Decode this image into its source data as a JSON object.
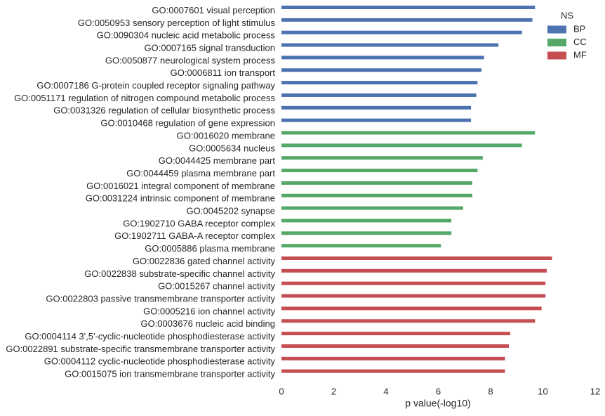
{
  "chart_data": {
    "type": "bar",
    "orientation": "horizontal",
    "xlabel": "p value(-log10)",
    "ylabel": "",
    "xlim": [
      0,
      12
    ],
    "xticks": [
      0,
      2,
      4,
      6,
      8,
      10,
      12
    ],
    "grid": false,
    "legend": {
      "title": "NS",
      "placement": "top-right",
      "items": [
        {
          "name": "BP",
          "color": "#4c72b0"
        },
        {
          "name": "CC",
          "color": "#55a868"
        },
        {
          "name": "MF",
          "color": "#c44e52"
        }
      ]
    },
    "bars": [
      {
        "label": "GO:0007601 visual perception",
        "value": 9.7,
        "ns": "BP"
      },
      {
        "label": "GO:0050953 sensory perception of light stimulus",
        "value": 9.6,
        "ns": "BP"
      },
      {
        "label": "GO:0090304 nucleic acid metabolic process",
        "value": 9.2,
        "ns": "BP"
      },
      {
        "label": "GO:0007165 signal transduction",
        "value": 8.3,
        "ns": "BP"
      },
      {
        "label": "GO:0050877 neurological system process",
        "value": 7.75,
        "ns": "BP"
      },
      {
        "label": "GO:0006811 ion transport",
        "value": 7.65,
        "ns": "BP"
      },
      {
        "label": "GO:0007186 G-protein coupled receptor signaling pathway",
        "value": 7.5,
        "ns": "BP"
      },
      {
        "label": "GO:0051171 regulation of nitrogen compound metabolic process",
        "value": 7.45,
        "ns": "BP"
      },
      {
        "label": "GO:0031326 regulation of cellular biosynthetic process",
        "value": 7.25,
        "ns": "BP"
      },
      {
        "label": "GO:0010468 regulation of gene expression",
        "value": 7.25,
        "ns": "BP"
      },
      {
        "label": "GO:0016020 membrane",
        "value": 9.7,
        "ns": "CC"
      },
      {
        "label": "GO:0005634 nucleus",
        "value": 9.2,
        "ns": "CC"
      },
      {
        "label": "GO:0044425 membrane part",
        "value": 7.7,
        "ns": "CC"
      },
      {
        "label": "GO:0044459 plasma membrane part",
        "value": 7.5,
        "ns": "CC"
      },
      {
        "label": "GO:0016021 integral component of membrane",
        "value": 7.3,
        "ns": "CC"
      },
      {
        "label": "GO:0031224 intrinsic component of membrane",
        "value": 7.3,
        "ns": "CC"
      },
      {
        "label": "GO:0045202 synapse",
        "value": 6.95,
        "ns": "CC"
      },
      {
        "label": "GO:1902710 GABA receptor complex",
        "value": 6.5,
        "ns": "CC"
      },
      {
        "label": "GO:1902711 GABA-A receptor complex",
        "value": 6.5,
        "ns": "CC"
      },
      {
        "label": "GO:0005886 plasma membrane",
        "value": 6.1,
        "ns": "CC"
      },
      {
        "label": "GO:0022836 gated channel activity",
        "value": 10.35,
        "ns": "MF"
      },
      {
        "label": "GO:0022838 substrate-specific channel activity",
        "value": 10.15,
        "ns": "MF"
      },
      {
        "label": "GO:0015267 channel activity",
        "value": 10.1,
        "ns": "MF"
      },
      {
        "label": "GO:0022803 passive transmembrane transporter activity",
        "value": 10.1,
        "ns": "MF"
      },
      {
        "label": "GO:0005216 ion channel activity",
        "value": 9.95,
        "ns": "MF"
      },
      {
        "label": "GO:0003676 nucleic acid binding",
        "value": 9.7,
        "ns": "MF"
      },
      {
        "label": "GO:0004114 3',5'-cyclic-nucleotide phosphodiesterase activity",
        "value": 8.75,
        "ns": "MF"
      },
      {
        "label": "GO:0022891 substrate-specific transmembrane transporter activity",
        "value": 8.7,
        "ns": "MF"
      },
      {
        "label": "GO:0004112 cyclic-nucleotide phosphodiesterase activity",
        "value": 8.55,
        "ns": "MF"
      },
      {
        "label": "GO:0015075 ion transmembrane transporter activity",
        "value": 8.55,
        "ns": "MF"
      }
    ]
  }
}
